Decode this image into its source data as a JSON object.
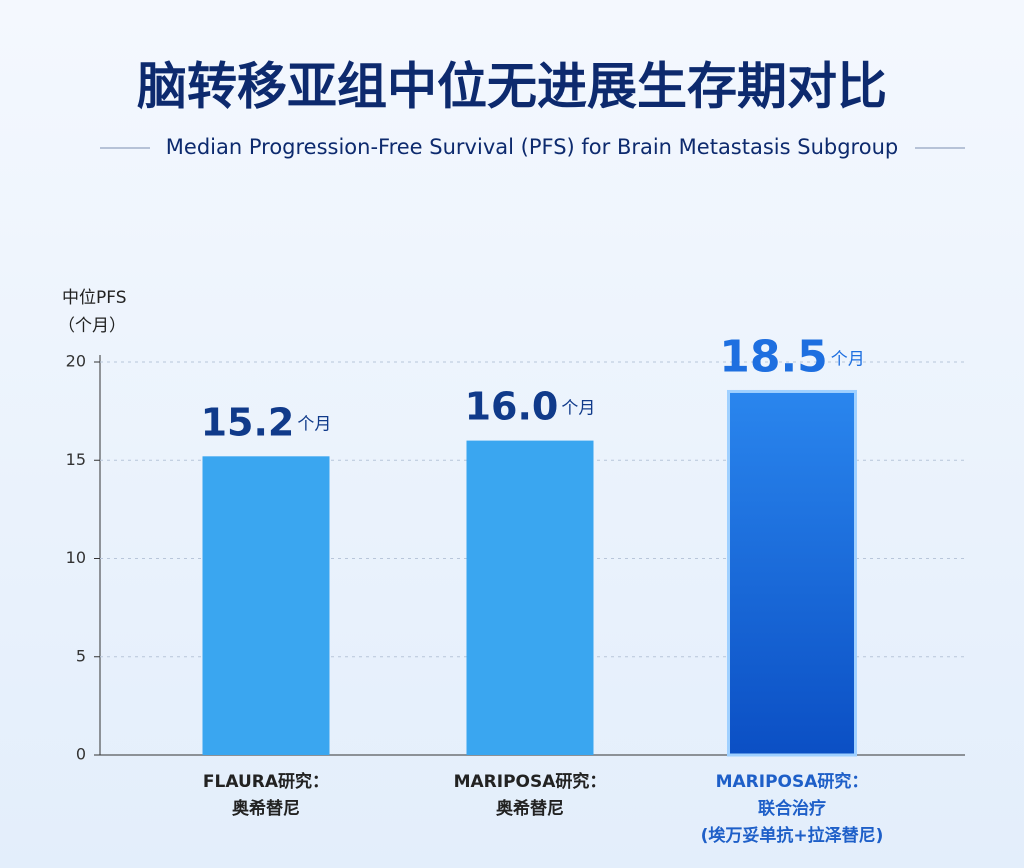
{
  "chart_data": {
    "type": "bar",
    "title": "脑转移亚组中位无进展生存期对比",
    "subtitle": "Median Progression-Free Survival (PFS) for Brain Metastasis Subgroup",
    "y_label": [
      "中位PFS",
      "（个月）"
    ],
    "categories": [
      [
        "FLAURA研究：",
        "奥希替尼"
      ],
      [
        "MARIPOSA研究：",
        "奥希替尼"
      ],
      [
        "MARIPOSA研究：",
        "联合治疗",
        "(埃万妥单抗+拉泽替尼)"
      ]
    ],
    "values": [
      15.2,
      16.0,
      18.5
    ],
    "value_labels": [
      "15.2",
      "16.0",
      "18.5"
    ],
    "unit": "个月",
    "colors": [
      "#3aa6f0",
      "#3aa6f0",
      "#1565d8"
    ],
    "ylim": [
      0,
      20
    ],
    "yticks": [
      0,
      5,
      10,
      15,
      20
    ],
    "grid": true
  }
}
